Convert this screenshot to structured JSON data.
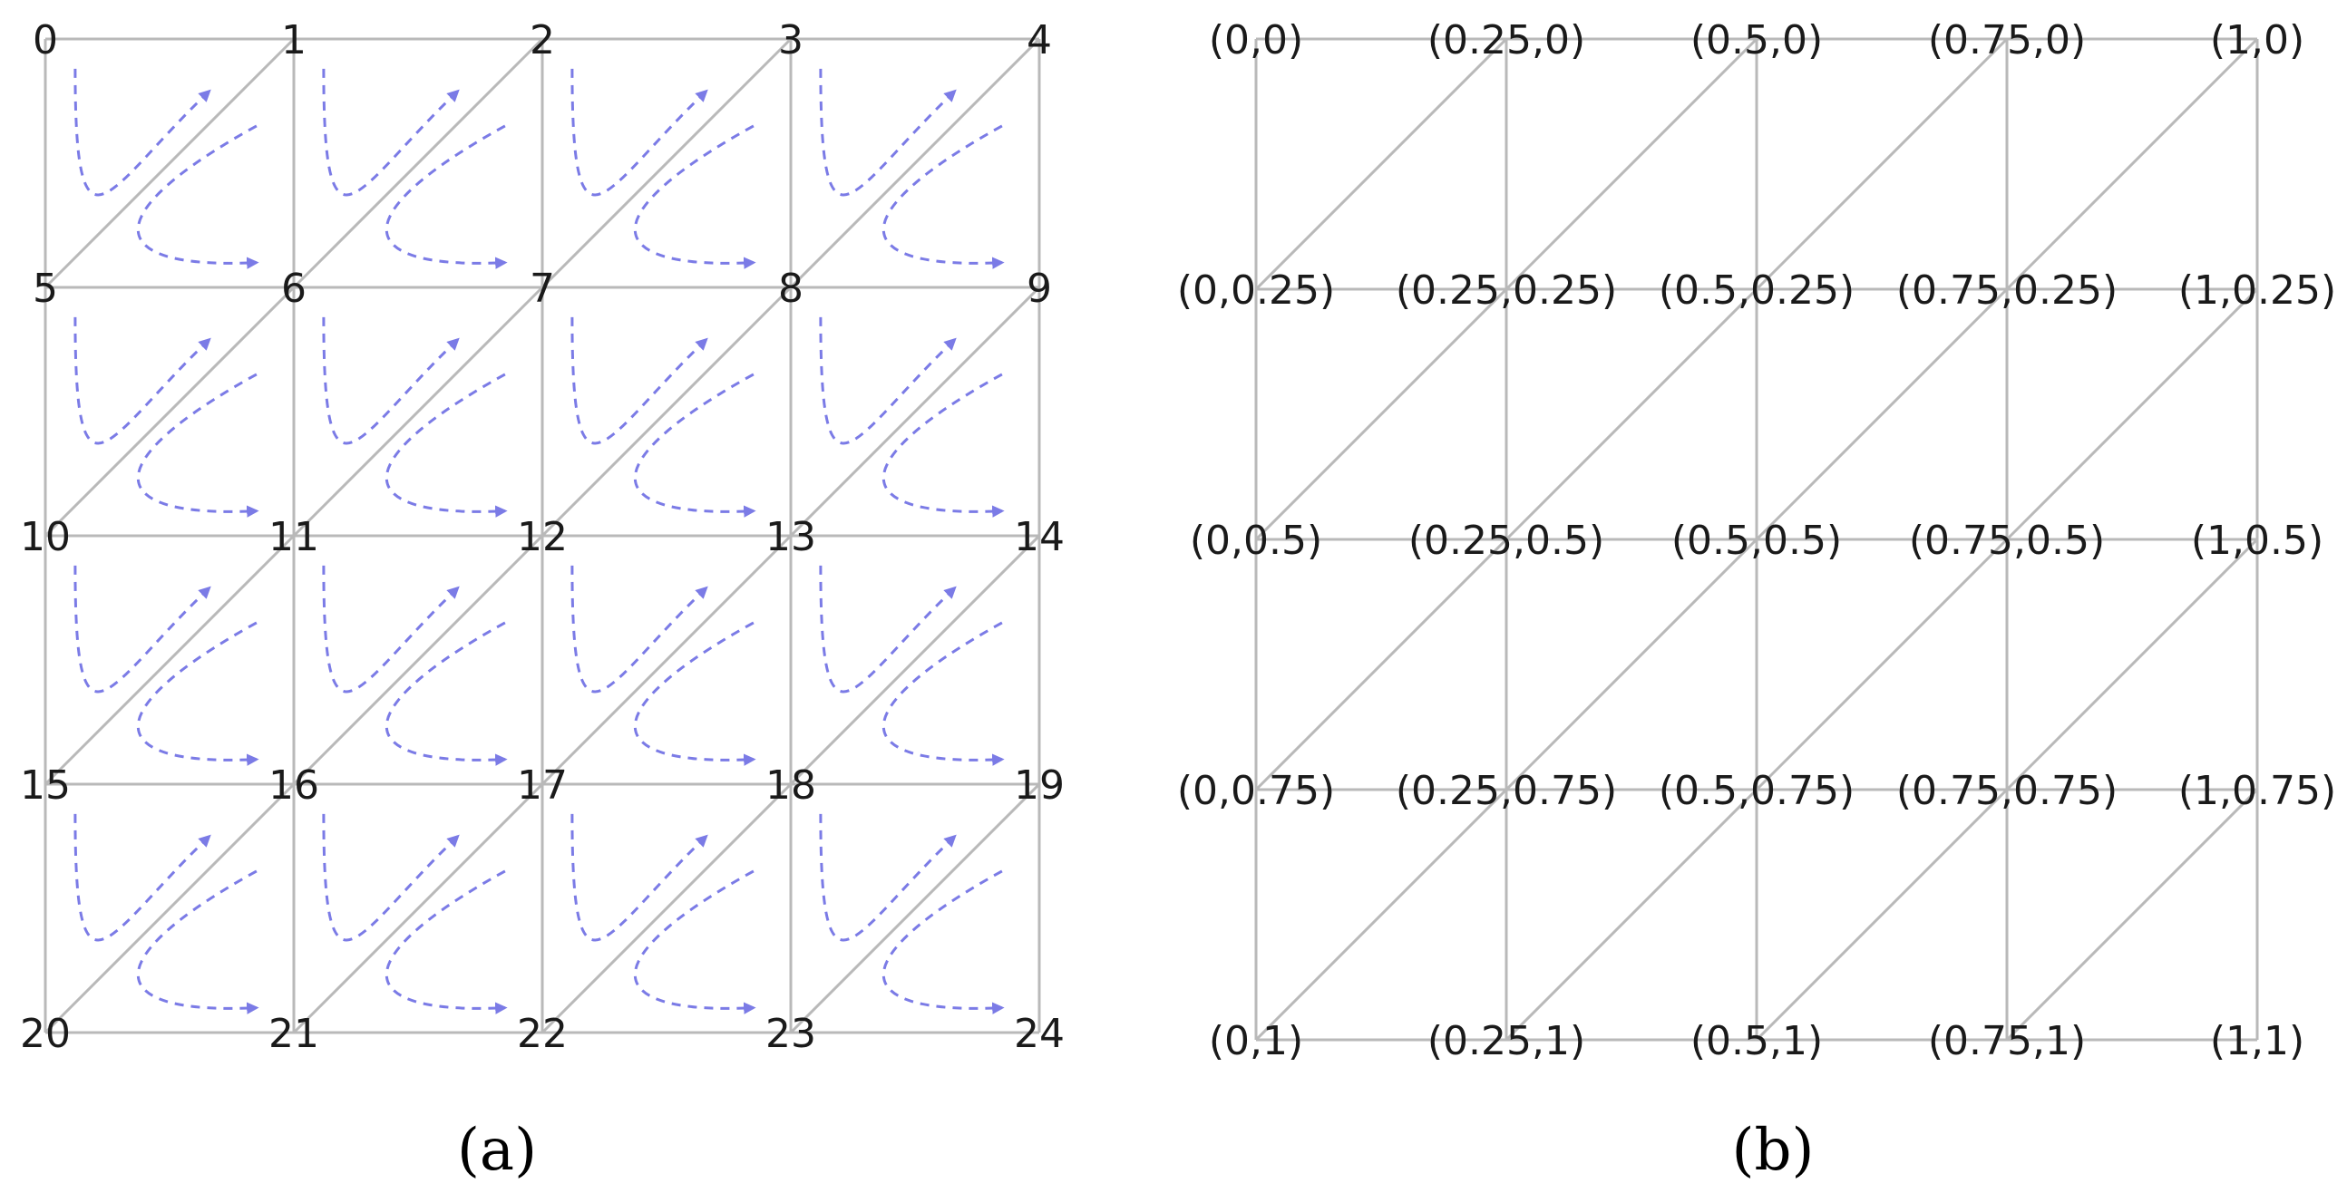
{
  "panel_a": {
    "caption": "(a)",
    "vertex_labels": [
      "0",
      "1",
      "2",
      "3",
      "4",
      "5",
      "6",
      "7",
      "8",
      "9",
      "10",
      "11",
      "12",
      "13",
      "14",
      "15",
      "16",
      "17",
      "18",
      "19",
      "20",
      "21",
      "22",
      "23",
      "24"
    ]
  },
  "panel_b": {
    "caption": "(b)",
    "coord_labels": [
      "(0,0)",
      "(0.25,0)",
      "(0.5,0)",
      "(0.75,0)",
      "(1,0)",
      "(0,0.25)",
      "(0.25,0.25)",
      "(0.5,0.25)",
      "(0.75,0.25)",
      "(1,0.25)",
      "(0,0.5)",
      "(0.25,0.5)",
      "(0.5,0.5)",
      "(0.75,0.5)",
      "(1,0.5)",
      "(0,0.75)",
      "(0.25,0.75)",
      "(0.5,0.75)",
      "(0.75,0.75)",
      "(1,0.75)",
      "(0,1)",
      "(0.25,1)",
      "(0.5,1)",
      "(0.75,1)",
      "(1,1)"
    ]
  },
  "colors": {
    "mesh_line": "#b9b9b9",
    "order_arrow": "#7b7be6",
    "text": "#1a1a1a"
  },
  "icons": {
    "order_arrow": "dashed-curved-arrow-icon"
  }
}
